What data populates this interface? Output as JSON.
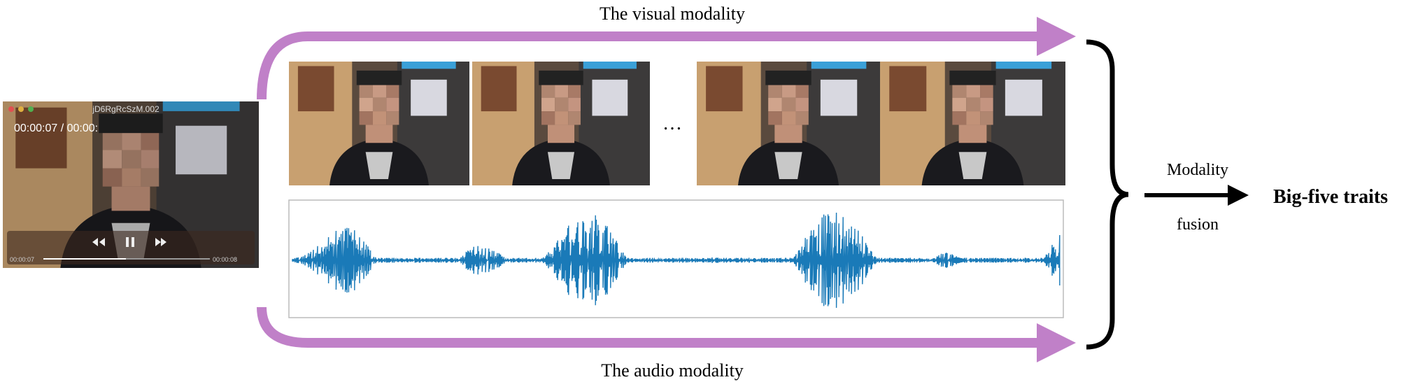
{
  "header": {
    "visual_label": "The visual modality",
    "audio_label": "The audio modality"
  },
  "frames": {
    "ellipsis": "…"
  },
  "player": {
    "title": "jD6RgRcSzM.002",
    "time": "00:00:07 / 00:00:",
    "elapsed": "00:00:07",
    "duration": "00:00:08"
  },
  "fusion": {
    "line1": "Modality",
    "line2": "fusion"
  },
  "output": {
    "label": "Big-five traits"
  }
}
